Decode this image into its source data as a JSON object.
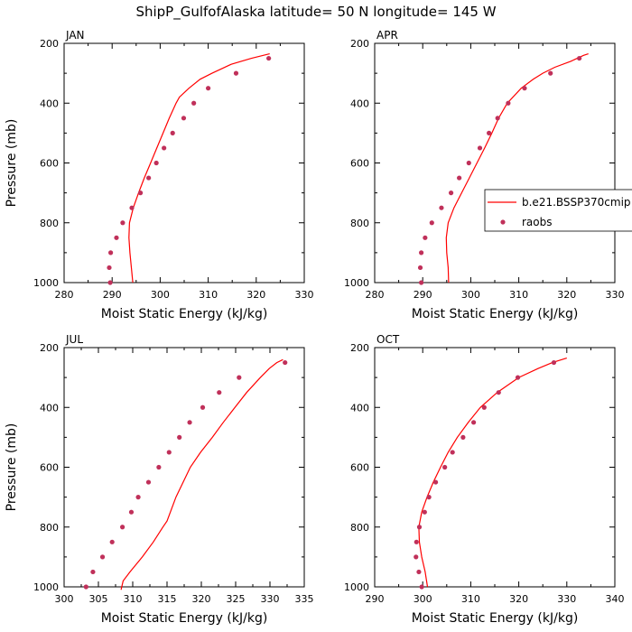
{
  "page_title": "ShipP_GulfofAlaska  latitude= 50 N longitude= 145 W",
  "legend": {
    "model": "b.e21.BSSP370cmip",
    "obs": "raobs"
  },
  "colors": {
    "model_line": "#ff0000",
    "obs_marker": "#c0305a"
  },
  "chart_data": [
    {
      "type": "line",
      "month": "JAN",
      "xlabel": "Moist Static Energy (kJ/kg)",
      "ylabel": "Pressure (mb)",
      "xlim": [
        280,
        330
      ],
      "ylim": [
        1000,
        200
      ],
      "x_ticks": [
        280,
        290,
        300,
        310,
        320,
        330
      ],
      "y_ticks": [
        200,
        400,
        600,
        800,
        1000
      ],
      "model": {
        "pressure": [
          1000,
          950,
          900,
          850,
          800,
          750,
          700,
          650,
          600,
          550,
          500,
          450,
          400,
          380,
          350,
          320,
          300,
          270,
          250,
          235
        ],
        "mse": [
          294.3,
          294.0,
          293.7,
          293.5,
          293.6,
          294.4,
          295.5,
          296.7,
          298.0,
          299.3,
          300.6,
          301.9,
          303.3,
          304.0,
          306.0,
          308.3,
          310.8,
          314.8,
          319.0,
          322.8
        ]
      },
      "obs": {
        "pressure": [
          1000,
          950,
          900,
          850,
          800,
          750,
          700,
          650,
          600,
          550,
          500,
          450,
          400,
          350,
          300,
          250
        ],
        "mse": [
          289.6,
          289.4,
          289.7,
          290.9,
          292.2,
          294.1,
          295.9,
          297.6,
          299.2,
          300.8,
          302.6,
          304.9,
          307.0,
          310.0,
          315.8,
          322.6
        ]
      }
    },
    {
      "type": "line",
      "month": "APR",
      "xlabel": "Moist Static Energy (kJ/kg)",
      "ylabel": "",
      "xlim": [
        280,
        330
      ],
      "ylim": [
        1000,
        200
      ],
      "x_ticks": [
        280,
        290,
        300,
        310,
        320,
        330
      ],
      "y_ticks": [
        200,
        400,
        600,
        800,
        1000
      ],
      "legend_placement": "right-center",
      "model": {
        "pressure": [
          1000,
          950,
          900,
          850,
          800,
          750,
          700,
          650,
          600,
          550,
          500,
          450,
          400,
          350,
          320,
          300,
          280,
          260,
          240,
          235
        ],
        "mse": [
          295.4,
          295.3,
          295.0,
          294.9,
          295.3,
          296.5,
          298.1,
          299.7,
          301.3,
          302.9,
          304.4,
          305.8,
          307.6,
          310.5,
          313.0,
          315.0,
          317.5,
          320.8,
          323.5,
          324.5
        ]
      },
      "obs": {
        "pressure": [
          1000,
          950,
          900,
          850,
          800,
          750,
          700,
          650,
          600,
          550,
          500,
          450,
          400,
          350,
          300,
          250
        ],
        "mse": [
          289.7,
          289.5,
          289.7,
          290.5,
          291.9,
          293.9,
          295.9,
          297.6,
          299.6,
          301.9,
          303.8,
          305.6,
          307.8,
          311.2,
          316.6,
          322.6
        ]
      }
    },
    {
      "type": "line",
      "month": "JUL",
      "xlabel": "Moist Static Energy (kJ/kg)",
      "ylabel": "Pressure (mb)",
      "xlim": [
        300,
        335
      ],
      "ylim": [
        1000,
        200
      ],
      "x_ticks": [
        300,
        305,
        310,
        315,
        320,
        325,
        330,
        335
      ],
      "y_ticks": [
        200,
        400,
        600,
        800,
        1000
      ],
      "model": {
        "pressure": [
          1010,
          980,
          950,
          900,
          850,
          800,
          780,
          700,
          600,
          550,
          500,
          450,
          400,
          350,
          300,
          270,
          250,
          240
        ],
        "mse": [
          308.3,
          308.6,
          309.6,
          311.4,
          313.0,
          314.4,
          315.0,
          316.3,
          318.4,
          319.9,
          321.6,
          323.2,
          324.9,
          326.6,
          328.6,
          329.9,
          331.0,
          331.9
        ]
      },
      "obs": {
        "pressure": [
          1000,
          950,
          900,
          850,
          800,
          750,
          700,
          650,
          600,
          550,
          500,
          450,
          400,
          350,
          300,
          250
        ],
        "mse": [
          303.2,
          304.2,
          305.6,
          307.0,
          308.5,
          309.8,
          310.8,
          312.3,
          313.8,
          315.3,
          316.8,
          318.3,
          320.2,
          322.6,
          325.5,
          332.2
        ]
      }
    },
    {
      "type": "line",
      "month": "OCT",
      "xlabel": "Moist Static Energy (kJ/kg)",
      "ylabel": "",
      "xlim": [
        290,
        340
      ],
      "ylim": [
        1000,
        200
      ],
      "x_ticks": [
        290,
        300,
        310,
        320,
        330,
        340
      ],
      "y_ticks": [
        200,
        400,
        600,
        800,
        1000
      ],
      "model": {
        "pressure": [
          1000,
          950,
          900,
          850,
          800,
          750,
          700,
          650,
          600,
          550,
          500,
          450,
          400,
          350,
          300,
          270,
          250,
          235
        ],
        "mse": [
          301.0,
          300.5,
          299.8,
          299.3,
          299.2,
          299.8,
          300.9,
          302.2,
          303.7,
          305.3,
          307.2,
          309.5,
          312.0,
          315.5,
          320.0,
          324.0,
          327.0,
          330.0
        ]
      },
      "obs": {
        "pressure": [
          1000,
          950,
          900,
          850,
          800,
          750,
          700,
          650,
          600,
          550,
          500,
          450,
          400,
          350,
          300,
          250
        ],
        "mse": [
          299.8,
          299.2,
          298.6,
          298.7,
          299.3,
          300.4,
          301.3,
          302.7,
          304.6,
          306.2,
          308.4,
          310.6,
          312.8,
          315.8,
          319.8,
          327.3
        ]
      }
    }
  ]
}
